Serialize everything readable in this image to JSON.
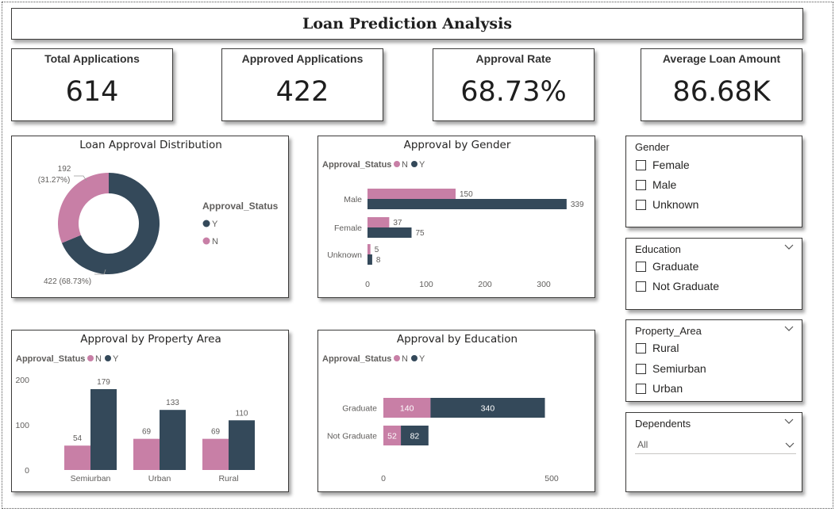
{
  "title": "Loan Prediction Analysis",
  "kpis": [
    {
      "label": "Total Applications",
      "value": "614"
    },
    {
      "label": "Approved Applications",
      "value": "422"
    },
    {
      "label": "Approval Rate",
      "value": "68.73%"
    },
    {
      "label": "Average Loan Amount",
      "value": "86.68K"
    }
  ],
  "colors": {
    "N": "#c87fa6",
    "Y": "#34495a"
  },
  "chart_data": [
    {
      "type": "pie",
      "title": "Loan Approval Distribution",
      "legend_title": "Approval_Status",
      "legend_placement": "right",
      "categories": [
        "Y",
        "N"
      ],
      "values": [
        422,
        192
      ],
      "data_labels": [
        "422 (68.73%)",
        "192 (31.27%)"
      ]
    },
    {
      "type": "bar",
      "orientation": "horizontal",
      "title": "Approval by Gender",
      "legend_title": "Approval_Status",
      "legend_placement": "top-left",
      "categories": [
        "Male",
        "Female",
        "Unknown"
      ],
      "series": [
        {
          "name": "N",
          "values": [
            150,
            37,
            5
          ]
        },
        {
          "name": "Y",
          "values": [
            339,
            75,
            8
          ]
        }
      ],
      "xlim": [
        0,
        360
      ],
      "xticks": [
        "0",
        "100",
        "200",
        "300"
      ],
      "grid": false
    },
    {
      "type": "bar",
      "orientation": "vertical",
      "title": "Approval by Property Area",
      "legend_title": "Approval_Status",
      "legend_placement": "top-left",
      "categories": [
        "Semiurban",
        "Urban",
        "Rural"
      ],
      "series": [
        {
          "name": "N",
          "values": [
            54,
            69,
            69
          ]
        },
        {
          "name": "Y",
          "values": [
            179,
            133,
            110
          ]
        }
      ],
      "ylim": [
        0,
        200
      ],
      "yticks": [
        "0",
        "100",
        "200"
      ],
      "grid": false
    },
    {
      "type": "bar",
      "orientation": "horizontal",
      "stacked": true,
      "title": "Approval by Education",
      "legend_title": "Approval_Status",
      "legend_placement": "top-left",
      "categories": [
        "Graduate",
        "Not Graduate"
      ],
      "series": [
        {
          "name": "N",
          "values": [
            140,
            52
          ]
        },
        {
          "name": "Y",
          "values": [
            340,
            82
          ]
        }
      ],
      "xlim": [
        0,
        500
      ],
      "xticks": [
        "0",
        "500"
      ],
      "grid": false
    }
  ],
  "slicers": {
    "gender": {
      "title": "Gender",
      "options": [
        "Female",
        "Male",
        "Unknown"
      ]
    },
    "education": {
      "title": "Education",
      "options": [
        "Graduate",
        "Not Graduate"
      ]
    },
    "property_area": {
      "title": "Property_Area",
      "options": [
        "Rural",
        "Semiurban",
        "Urban"
      ]
    },
    "dependents": {
      "title": "Dependents",
      "selected": "All"
    }
  }
}
